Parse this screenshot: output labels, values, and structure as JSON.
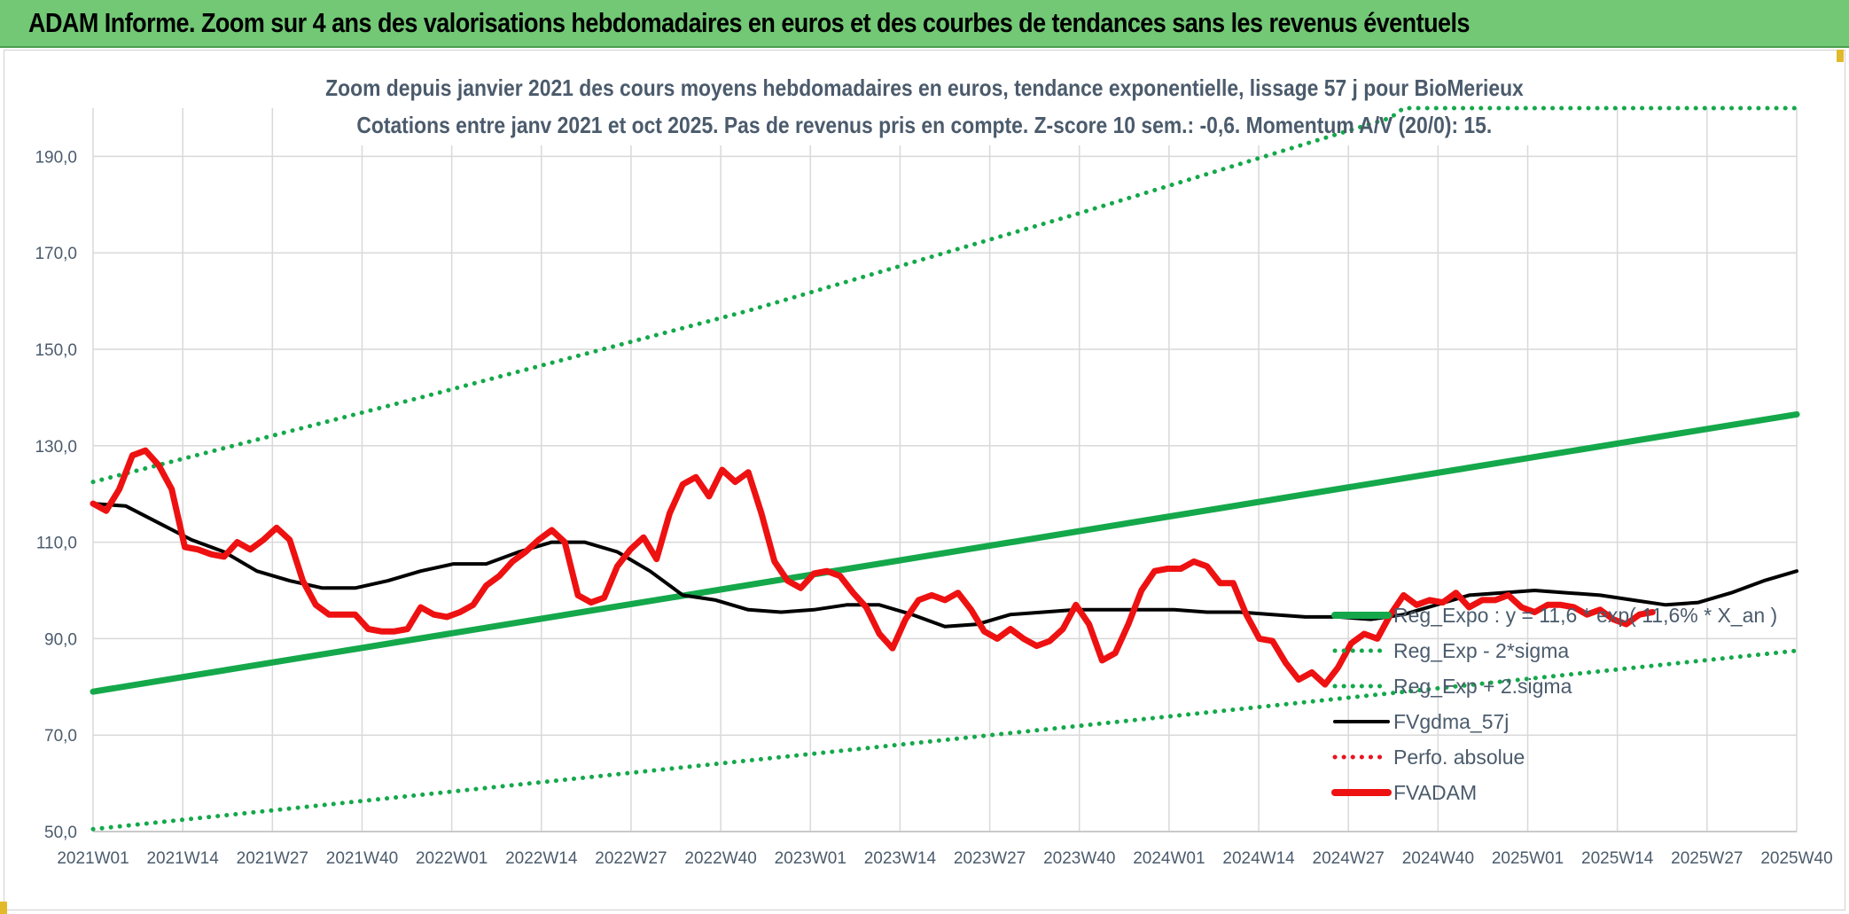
{
  "page": {
    "banner_title": "ADAM Informe. Zoom sur 4 ans des valorisations hebdomadaires en euros et des courbes de tendances sans les revenus éventuels"
  },
  "chart_data": {
    "type": "line",
    "title": "Zoom depuis janvier 2021 des cours moyens hebdomadaires en euros, tendance exponentielle, lissage 57 j pour BioMerieux",
    "subtitle": "Cotations entre janv 2021 et oct 2025. Pas de revenus pris en compte. Z-score 10 sem.: -0,6. Momentum A/V (20/0): 15.",
    "xlabel": "",
    "ylabel": "",
    "ylim": [
      50,
      200
    ],
    "y_ticks": [
      50,
      70,
      90,
      110,
      130,
      150,
      170,
      190
    ],
    "y_tick_labels": [
      "50,0",
      "70,0",
      "90,0",
      "110,0",
      "130,0",
      "150,0",
      "170,0",
      "190,0"
    ],
    "x_tick_labels": [
      "2021W01",
      "2021W14",
      "2021W27",
      "2021W40",
      "2022W01",
      "2022W14",
      "2022W27",
      "2022W40",
      "2023W01",
      "2023W14",
      "2023W27",
      "2023W40",
      "2024W01",
      "2024W14",
      "2024W27",
      "2024W40",
      "2025W01",
      "2025W14",
      "2025W27",
      "2025W40"
    ],
    "grid": true,
    "legend_position": "bottom-right",
    "series": [
      {
        "name": "Reg_Expo : y = 11,6 * exp( 11,6% *  X_an )",
        "color": "#14a84b",
        "style": "solid-thick",
        "points": [
          [
            0,
            79
          ],
          [
            260,
            136.5
          ]
        ]
      },
      {
        "name": "Reg_Exp - 2*sigma",
        "color": "#14a84b",
        "style": "dotted",
        "points": [
          [
            0,
            50.5
          ],
          [
            260,
            87.5
          ]
        ]
      },
      {
        "name": "Reg_Exp + 2.sigma",
        "color": "#14a84b",
        "style": "dotted",
        "points": [
          [
            0,
            122.5
          ],
          [
            50,
            140
          ],
          [
            100,
            158
          ],
          [
            150,
            178
          ],
          [
            198,
            198
          ],
          [
            200,
            200
          ],
          [
            260,
            200
          ]
        ]
      },
      {
        "name": "FVgdma_57j",
        "color": "#000000",
        "style": "solid",
        "points": [
          [
            0,
            118
          ],
          [
            5,
            117.5
          ],
          [
            10,
            114
          ],
          [
            15,
            110.5
          ],
          [
            20,
            108
          ],
          [
            25,
            104
          ],
          [
            30,
            102
          ],
          [
            35,
            100.5
          ],
          [
            40,
            100.5
          ],
          [
            45,
            102
          ],
          [
            50,
            104
          ],
          [
            55,
            105.5
          ],
          [
            60,
            105.5
          ],
          [
            65,
            108
          ],
          [
            70,
            110
          ],
          [
            75,
            110
          ],
          [
            80,
            108
          ],
          [
            85,
            104
          ],
          [
            90,
            99
          ],
          [
            95,
            98
          ],
          [
            100,
            96
          ],
          [
            105,
            95.5
          ],
          [
            110,
            96
          ],
          [
            115,
            97
          ],
          [
            120,
            97
          ],
          [
            125,
            95
          ],
          [
            130,
            92.5
          ],
          [
            135,
            93
          ],
          [
            140,
            95
          ],
          [
            145,
            95.5
          ],
          [
            150,
            96
          ],
          [
            155,
            96
          ],
          [
            160,
            96
          ],
          [
            165,
            96
          ],
          [
            170,
            95.5
          ],
          [
            175,
            95.5
          ],
          [
            180,
            95
          ],
          [
            185,
            94.5
          ],
          [
            190,
            94.5
          ],
          [
            195,
            94
          ],
          [
            200,
            95
          ],
          [
            205,
            97
          ],
          [
            210,
            99
          ],
          [
            215,
            99.5
          ],
          [
            220,
            100
          ],
          [
            225,
            99.5
          ],
          [
            230,
            99
          ],
          [
            235,
            98
          ],
          [
            240,
            97
          ],
          [
            245,
            97.5
          ],
          [
            250,
            99.5
          ],
          [
            255,
            102
          ],
          [
            260,
            104
          ]
        ]
      },
      {
        "name": "Perfo. absolue",
        "color": "#e8141e",
        "style": "dotted",
        "points": []
      },
      {
        "name": "FVADAM",
        "color": "#ee1111",
        "style": "solid-thick",
        "points": [
          [
            0,
            118
          ],
          [
            2,
            116.5
          ],
          [
            4,
            121
          ],
          [
            6,
            128
          ],
          [
            8,
            129
          ],
          [
            10,
            126
          ],
          [
            12,
            121
          ],
          [
            14,
            109
          ],
          [
            16,
            108.5
          ],
          [
            18,
            107.5
          ],
          [
            20,
            107
          ],
          [
            22,
            110
          ],
          [
            24,
            108.5
          ],
          [
            26,
            110.5
          ],
          [
            28,
            113
          ],
          [
            30,
            110.5
          ],
          [
            32,
            102
          ],
          [
            34,
            97
          ],
          [
            36,
            95
          ],
          [
            38,
            95
          ],
          [
            40,
            95
          ],
          [
            42,
            92
          ],
          [
            44,
            91.5
          ],
          [
            46,
            91.5
          ],
          [
            48,
            92
          ],
          [
            50,
            96.5
          ],
          [
            52,
            95
          ],
          [
            54,
            94.5
          ],
          [
            56,
            95.5
          ],
          [
            58,
            97
          ],
          [
            60,
            101
          ],
          [
            62,
            103
          ],
          [
            64,
            106
          ],
          [
            66,
            108
          ],
          [
            68,
            110.5
          ],
          [
            70,
            112.5
          ],
          [
            72,
            110
          ],
          [
            74,
            99
          ],
          [
            76,
            97.5
          ],
          [
            78,
            98.5
          ],
          [
            80,
            105
          ],
          [
            82,
            108.5
          ],
          [
            84,
            111
          ],
          [
            86,
            106.5
          ],
          [
            88,
            116
          ],
          [
            90,
            122
          ],
          [
            92,
            123.5
          ],
          [
            94,
            119.5
          ],
          [
            96,
            125
          ],
          [
            98,
            122.5
          ],
          [
            100,
            124.5
          ],
          [
            102,
            116
          ],
          [
            104,
            106
          ],
          [
            106,
            102
          ],
          [
            108,
            100.5
          ],
          [
            110,
            103.5
          ],
          [
            112,
            104
          ],
          [
            114,
            103
          ],
          [
            116,
            99.5
          ],
          [
            118,
            96.5
          ],
          [
            120,
            91
          ],
          [
            122,
            88
          ],
          [
            124,
            94
          ],
          [
            126,
            98
          ],
          [
            128,
            99
          ],
          [
            130,
            98
          ],
          [
            132,
            99.5
          ],
          [
            134,
            96
          ],
          [
            136,
            91.5
          ],
          [
            138,
            90
          ],
          [
            140,
            92
          ],
          [
            142,
            90
          ],
          [
            144,
            88.5
          ],
          [
            146,
            89.5
          ],
          [
            148,
            92
          ],
          [
            150,
            97
          ],
          [
            152,
            93
          ],
          [
            154,
            85.5
          ],
          [
            156,
            87
          ],
          [
            158,
            93
          ],
          [
            160,
            100
          ],
          [
            162,
            104
          ],
          [
            164,
            104.5
          ],
          [
            166,
            104.5
          ],
          [
            168,
            106
          ],
          [
            170,
            105
          ],
          [
            172,
            101.5
          ],
          [
            174,
            101.5
          ],
          [
            176,
            95
          ],
          [
            178,
            90
          ],
          [
            180,
            89.5
          ],
          [
            182,
            85
          ],
          [
            184,
            81.5
          ],
          [
            186,
            83
          ],
          [
            188,
            80.5
          ],
          [
            190,
            84
          ],
          [
            192,
            89
          ],
          [
            194,
            91
          ],
          [
            196,
            90
          ],
          [
            198,
            95
          ],
          [
            200,
            99
          ],
          [
            202,
            97
          ],
          [
            204,
            98
          ],
          [
            206,
            97.5
          ],
          [
            208,
            99.5
          ],
          [
            210,
            96.5
          ],
          [
            212,
            98
          ],
          [
            214,
            98
          ],
          [
            216,
            99
          ],
          [
            218,
            96.5
          ],
          [
            220,
            95.5
          ],
          [
            222,
            97
          ],
          [
            224,
            97
          ],
          [
            226,
            96.5
          ],
          [
            228,
            95
          ],
          [
            230,
            96
          ],
          [
            232,
            94
          ],
          [
            234,
            93
          ],
          [
            236,
            95
          ],
          [
            238,
            95.5
          ]
        ]
      }
    ]
  }
}
